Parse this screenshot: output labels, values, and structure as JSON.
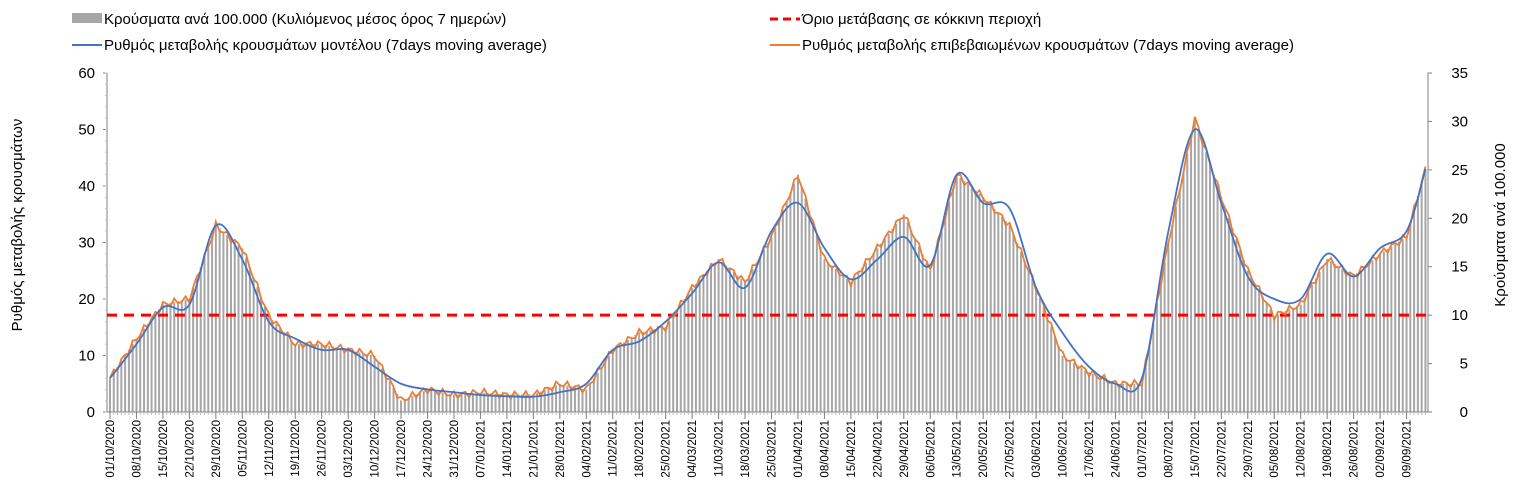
{
  "chart_data": {
    "type": "bar+line",
    "legend": [
      {
        "label": "Κρούσματα ανά 100.000 (Κυλιόμενος μέσος όρος 7 ημερών)",
        "color": "#a6a6a6",
        "kind": "bar"
      },
      {
        "label": "Όριο μετάβασης σε κόκκινη περιοχή",
        "color": "#ff0000",
        "kind": "dashed"
      },
      {
        "label": "Ρυθμός μεταβολής κρουσμάτων μοντέλου (7days moving average)",
        "color": "#4472c4",
        "kind": "line"
      },
      {
        "label": "Ρυθμός μεταβολής επιβεβαιωμένων κρουσμάτων (7days moving average)",
        "color": "#ed7d31",
        "kind": "line"
      }
    ],
    "ylabel_left": "Ρυθμός μεταβολής κρουσμάτων",
    "ylabel_right": "Κρούσματα ανά 100.000",
    "ylim_left": [
      0,
      60
    ],
    "yticks_left": [
      "0",
      "10",
      "20",
      "30",
      "40",
      "50",
      "60"
    ],
    "ylim_right": [
      0,
      35
    ],
    "yticks_right": [
      "0",
      "5",
      "10",
      "15",
      "20",
      "25",
      "30",
      "35"
    ],
    "red_threshold_right": 10,
    "x_tick_labels": [
      "01/10/2020",
      "08/10/2020",
      "15/10/2020",
      "22/10/2020",
      "29/10/2020",
      "05/11/2020",
      "12/11/2020",
      "19/11/2020",
      "26/11/2020",
      "03/12/2020",
      "10/12/2020",
      "17/12/2020",
      "24/12/2020",
      "31/12/2020",
      "07/01/2021",
      "14/01/2021",
      "21/01/2021",
      "28/01/2021",
      "04/02/2021",
      "11/02/2021",
      "18/02/2021",
      "25/02/2021",
      "04/03/2021",
      "11/03/2021",
      "18/03/2021",
      "25/03/2021",
      "01/04/2021",
      "08/04/2021",
      "15/04/2021",
      "22/04/2021",
      "29/04/2021",
      "06/05/2021",
      "13/05/2021",
      "20/05/2021",
      "27/05/2021",
      "03/06/2021",
      "10/06/2021",
      "17/06/2021",
      "24/06/2021",
      "01/07/2021",
      "08/07/2021",
      "15/07/2021",
      "22/07/2021",
      "29/07/2021",
      "05/08/2021",
      "12/08/2021",
      "19/08/2021",
      "26/08/2021",
      "02/09/2021",
      "09/09/2021"
    ],
    "days": [
      0,
      7,
      14,
      21,
      28,
      35,
      42,
      49,
      56,
      63,
      70,
      77,
      84,
      91,
      98,
      105,
      112,
      119,
      126,
      133,
      140,
      147,
      154,
      161,
      168,
      175,
      182,
      189,
      196,
      203,
      210,
      217,
      224,
      231,
      238,
      245,
      252,
      259,
      266,
      273,
      280,
      287,
      294,
      301,
      308,
      315,
      322,
      329,
      336,
      343,
      348
    ],
    "model_rate": [
      6,
      12,
      18.5,
      19,
      33,
      27,
      16,
      13,
      11,
      11,
      8,
      5,
      4,
      3.5,
      3,
      2.8,
      2.7,
      3.5,
      5,
      11,
      12.5,
      16,
      21,
      26.5,
      22,
      32,
      37,
      29,
      23.5,
      27,
      31,
      26,
      42,
      37,
      36,
      22,
      14,
      8,
      5,
      6,
      32,
      50,
      37,
      24,
      20,
      20,
      28,
      24,
      29,
      32,
      43
    ],
    "confirmed_rate": [
      6,
      13,
      19,
      20,
      33,
      29,
      17,
      12,
      12,
      11,
      10,
      2,
      4,
      3,
      3.5,
      3,
      3,
      5,
      4,
      11,
      14,
      15,
      22,
      27,
      23,
      31,
      42,
      27,
      23,
      29,
      35,
      25,
      42,
      38,
      33,
      22,
      10,
      7,
      5,
      5,
      30,
      52,
      38,
      25,
      17,
      19,
      27,
      24,
      28,
      31,
      43
    ],
    "cases_per_100k": [
      3.5,
      7.6,
      11.1,
      11.7,
      19.3,
      16.9,
      9.9,
      7,
      7,
      6.4,
      5.8,
      1.2,
      2.3,
      1.8,
      2,
      1.8,
      1.8,
      2.9,
      2.3,
      6.4,
      8.2,
      8.8,
      12.8,
      15.8,
      13.4,
      18.1,
      24.5,
      15.8,
      13.4,
      16.9,
      20.4,
      14.6,
      24.5,
      22.2,
      19.3,
      12.8,
      5.8,
      4.1,
      2.9,
      2.9,
      17.5,
      30.3,
      22.2,
      14.6,
      9.9,
      11.1,
      15.8,
      14,
      16.3,
      18.1,
      25.1
    ]
  }
}
